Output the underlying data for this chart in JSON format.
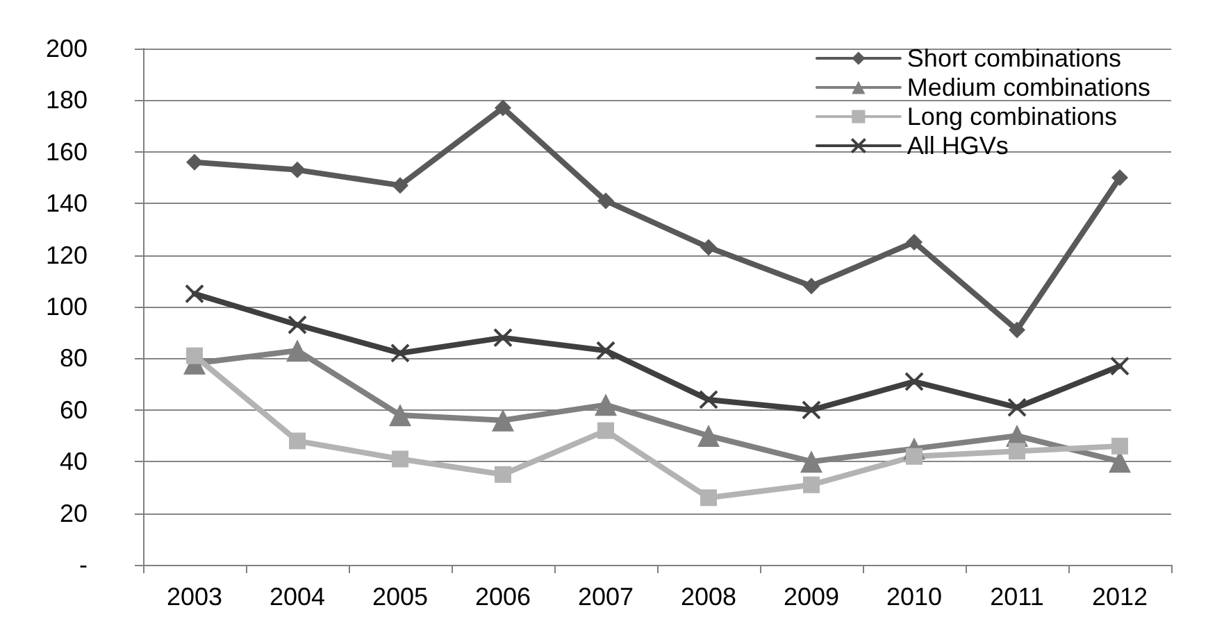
{
  "chart_data": {
    "type": "line",
    "categories": [
      "2003",
      "2004",
      "2005",
      "2006",
      "2007",
      "2008",
      "2009",
      "2010",
      "2011",
      "2012"
    ],
    "series": [
      {
        "name": "Short combinations",
        "color": "#595959",
        "marker": "diamond",
        "values": [
          156,
          153,
          147,
          177,
          141,
          123,
          108,
          125,
          91,
          150
        ]
      },
      {
        "name": "Medium combinations",
        "color": "#808080",
        "marker": "triangle",
        "values": [
          78,
          83,
          58,
          56,
          62,
          50,
          40,
          45,
          50,
          40
        ]
      },
      {
        "name": "Long combinations",
        "color": "#b3b3b3",
        "marker": "square",
        "values": [
          81,
          48,
          41,
          35,
          52,
          26,
          31,
          42,
          44,
          46
        ]
      },
      {
        "name": "All HGVs",
        "color": "#3f3f3f",
        "marker": "cross",
        "values": [
          105,
          93,
          82,
          88,
          83,
          64,
          60,
          71,
          61,
          77
        ]
      }
    ],
    "ylim": [
      0,
      200
    ],
    "yticks": [
      {
        "value": 0,
        "label": "-"
      },
      20,
      40,
      60,
      80,
      100,
      120,
      140,
      160,
      180,
      200
    ],
    "grid": "y",
    "legend": "top right"
  }
}
